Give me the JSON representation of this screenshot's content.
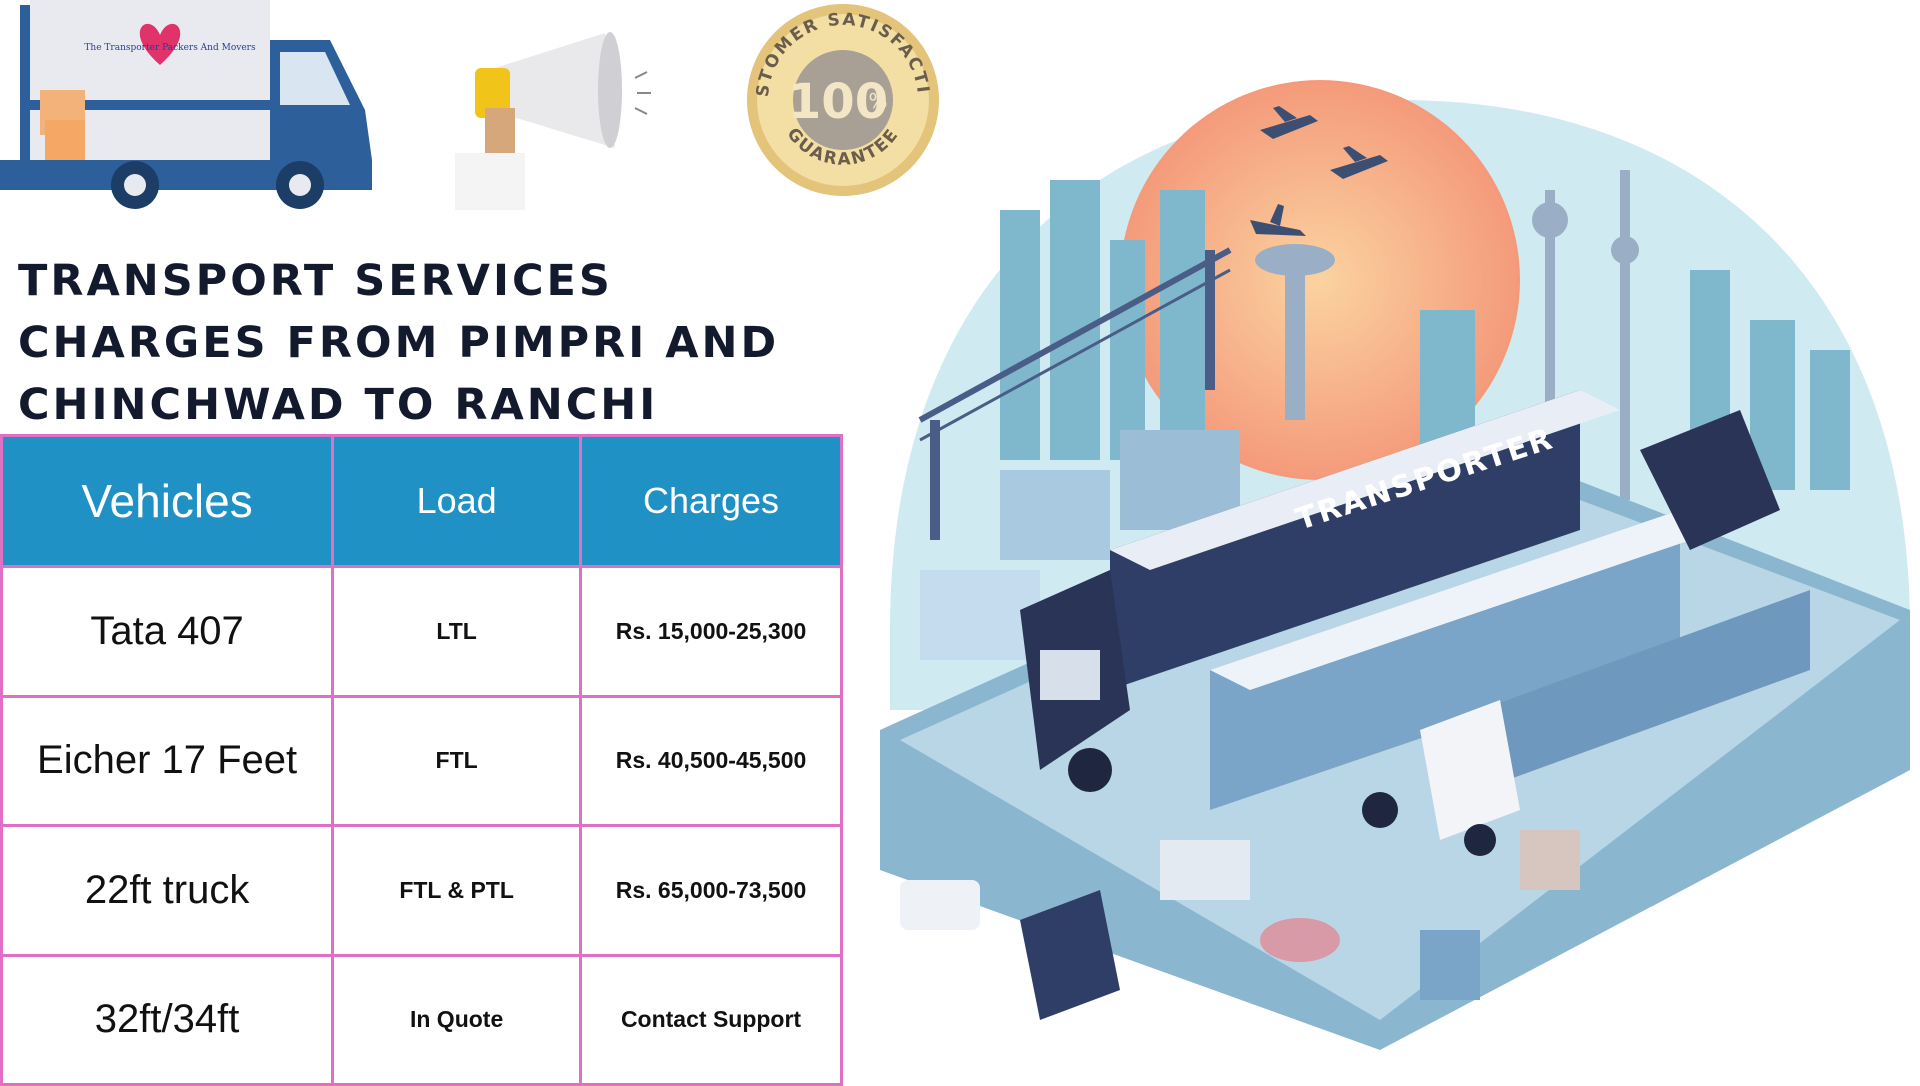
{
  "logo": {
    "brand_text": "The Transporter Packers And Movers"
  },
  "badge": {
    "top_text": "CUSTOMER SATISFACTION",
    "center_text": "100",
    "percent": "%",
    "bottom_text": "GUARANTEE"
  },
  "heading": {
    "title": "TRANSPORT SERVICES CHARGES FROM PIMPRI AND CHINCHWAD TO RANCHI"
  },
  "table": {
    "headers": [
      "Vehicles",
      "Load",
      "Charges"
    ],
    "rows": [
      {
        "vehicle": "Tata 407",
        "load": "LTL",
        "charges": "Rs. 15,000-25,300"
      },
      {
        "vehicle": "Eicher 17 Feet",
        "load": "FTL",
        "charges": "Rs. 40,500-45,500"
      },
      {
        "vehicle": "22ft truck",
        "load": "FTL & PTL",
        "charges": "Rs. 65,000-73,500"
      },
      {
        "vehicle": "32ft/34ft",
        "load": "In Quote",
        "charges": "Contact Support"
      }
    ]
  },
  "illustration": {
    "container_text": "TRANSPORTER"
  },
  "colors": {
    "header_blue": "#2091c4",
    "border_pink": "#e06fc6",
    "title_dark": "#141a2e"
  }
}
